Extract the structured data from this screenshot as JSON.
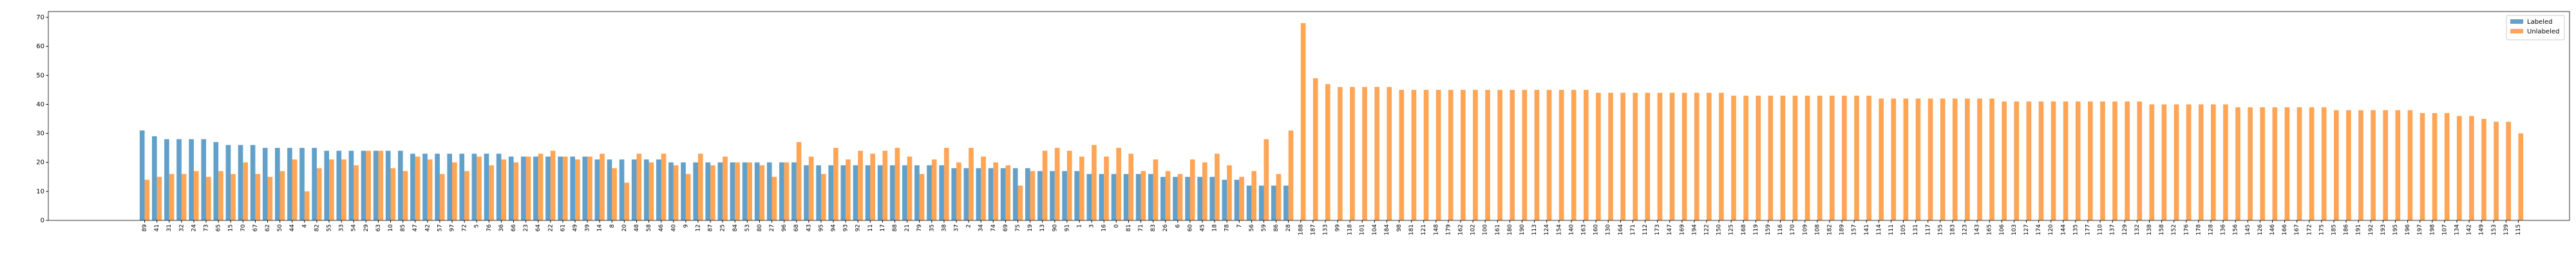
{
  "chart_data": {
    "type": "grouped_bar",
    "categories": [
      89,
      41,
      31,
      32,
      24,
      73,
      65,
      15,
      70,
      67,
      62,
      50,
      44,
      4,
      82,
      55,
      33,
      54,
      29,
      63,
      10,
      85,
      47,
      42,
      57,
      97,
      72,
      5,
      76,
      36,
      66,
      23,
      64,
      22,
      61,
      49,
      39,
      14,
      8,
      20,
      48,
      58,
      46,
      40,
      9,
      12,
      87,
      25,
      84,
      53,
      80,
      27,
      96,
      68,
      43,
      95,
      94,
      93,
      92,
      11,
      17,
      88,
      21,
      79,
      35,
      38,
      37,
      2,
      34,
      74,
      69,
      75,
      19,
      13,
      90,
      91,
      1,
      3,
      16,
      0,
      81,
      71,
      83,
      26,
      6,
      60,
      45,
      18,
      78,
      7,
      56,
      59,
      86,
      28,
      188,
      187,
      133,
      99,
      118,
      101,
      104,
      184,
      98,
      181,
      121,
      148,
      179,
      162,
      102,
      100,
      161,
      180,
      190,
      113,
      124,
      154,
      140,
      163,
      160,
      130,
      164,
      171,
      112,
      173,
      147,
      169,
      194,
      122,
      150,
      125,
      168,
      119,
      159,
      116,
      170,
      109,
      108,
      182,
      189,
      157,
      141,
      114,
      111,
      105,
      131,
      117,
      155,
      183,
      123,
      143,
      165,
      106,
      103,
      127,
      174,
      120,
      144,
      135,
      177,
      110,
      137,
      129,
      132,
      138,
      158,
      152,
      176,
      178,
      128,
      136,
      156,
      145,
      126,
      146,
      166,
      167,
      172,
      175,
      185,
      186,
      191,
      192,
      193,
      195,
      196,
      197,
      198,
      107,
      134,
      142,
      149,
      153,
      139,
      115
    ],
    "series": [
      {
        "name": "Labeled",
        "color": "#1f77b4",
        "values": [
          31,
          29,
          28,
          28,
          28,
          28,
          27,
          26,
          26,
          26,
          25,
          25,
          25,
          25,
          25,
          24,
          24,
          24,
          24,
          24,
          24,
          24,
          23,
          23,
          23,
          23,
          23,
          23,
          23,
          23,
          22,
          22,
          22,
          22,
          22,
          22,
          22,
          21,
          21,
          21,
          21,
          21,
          21,
          20,
          20,
          20,
          20,
          20,
          20,
          20,
          20,
          20,
          20,
          20,
          19,
          19,
          19,
          19,
          19,
          19,
          19,
          19,
          19,
          19,
          19,
          19,
          18,
          18,
          18,
          18,
          18,
          18,
          18,
          17,
          17,
          17,
          17,
          16,
          16,
          16,
          16,
          16,
          16,
          15,
          15,
          15,
          15,
          15,
          14,
          14,
          12,
          12,
          12,
          12,
          null,
          null,
          null,
          null,
          null,
          null,
          null,
          null,
          null,
          null,
          null,
          null,
          null,
          null,
          null,
          null,
          null,
          null,
          null,
          null,
          null,
          null,
          null,
          null,
          null,
          null,
          null,
          null,
          null,
          null,
          null,
          null,
          null,
          null,
          null,
          null,
          null,
          null,
          null,
          null,
          null,
          null,
          null,
          null,
          null,
          null,
          null,
          null,
          null,
          null,
          null,
          null,
          null,
          null,
          null,
          null,
          null,
          null,
          null,
          null,
          null,
          null,
          null,
          null,
          null,
          null,
          null,
          null,
          null,
          null,
          null,
          null,
          null,
          null,
          null,
          null,
          null,
          null,
          null,
          null,
          null,
          null,
          null,
          null,
          null,
          null,
          null,
          null,
          null,
          null,
          null,
          null,
          null,
          null,
          null,
          null,
          null,
          null,
          null,
          null
        ]
      },
      {
        "name": "Unlabeled",
        "color": "#ff7f0e",
        "values": [
          14,
          15,
          16,
          16,
          17,
          15,
          17,
          16,
          20,
          16,
          15,
          17,
          21,
          10,
          18,
          21,
          21,
          19,
          24,
          24,
          18,
          17,
          22,
          21,
          16,
          20,
          17,
          22,
          19,
          21,
          20,
          22,
          23,
          24,
          22,
          21,
          22,
          23,
          18,
          13,
          23,
          20,
          23,
          19,
          16,
          23,
          19,
          22,
          20,
          20,
          19,
          15,
          20,
          27,
          22,
          16,
          25,
          21,
          24,
          23,
          24,
          25,
          22,
          16,
          21,
          25,
          20,
          25,
          22,
          20,
          19,
          12,
          17,
          24,
          25,
          24,
          22,
          26,
          22,
          25,
          23,
          17,
          21,
          17,
          16,
          21,
          20,
          23,
          19,
          15,
          17,
          28,
          16,
          31,
          68,
          49,
          47,
          46,
          46,
          46,
          46,
          46,
          45,
          45,
          45,
          45,
          45,
          45,
          45,
          45,
          45,
          45,
          45,
          45,
          45,
          45,
          45,
          45,
          44,
          44,
          44,
          44,
          44,
          44,
          44,
          44,
          44,
          44,
          44,
          43,
          43,
          43,
          43,
          43,
          43,
          43,
          43,
          43,
          43,
          43,
          43,
          42,
          42,
          42,
          42,
          42,
          42,
          42,
          42,
          42,
          42,
          41,
          41,
          41,
          41,
          41,
          41,
          41,
          41,
          41,
          41,
          41,
          41,
          40,
          40,
          40,
          40,
          40,
          40,
          40,
          39,
          39,
          39,
          39,
          39,
          39,
          39,
          39,
          38,
          38,
          38,
          38,
          38,
          38,
          38,
          37,
          37,
          37,
          36,
          36,
          35,
          34,
          34,
          30
        ]
      }
    ],
    "ylim": [
      0,
      72
    ],
    "yticks": [
      0,
      10,
      20,
      30,
      40,
      50,
      60,
      70
    ],
    "legend": "upper right"
  }
}
